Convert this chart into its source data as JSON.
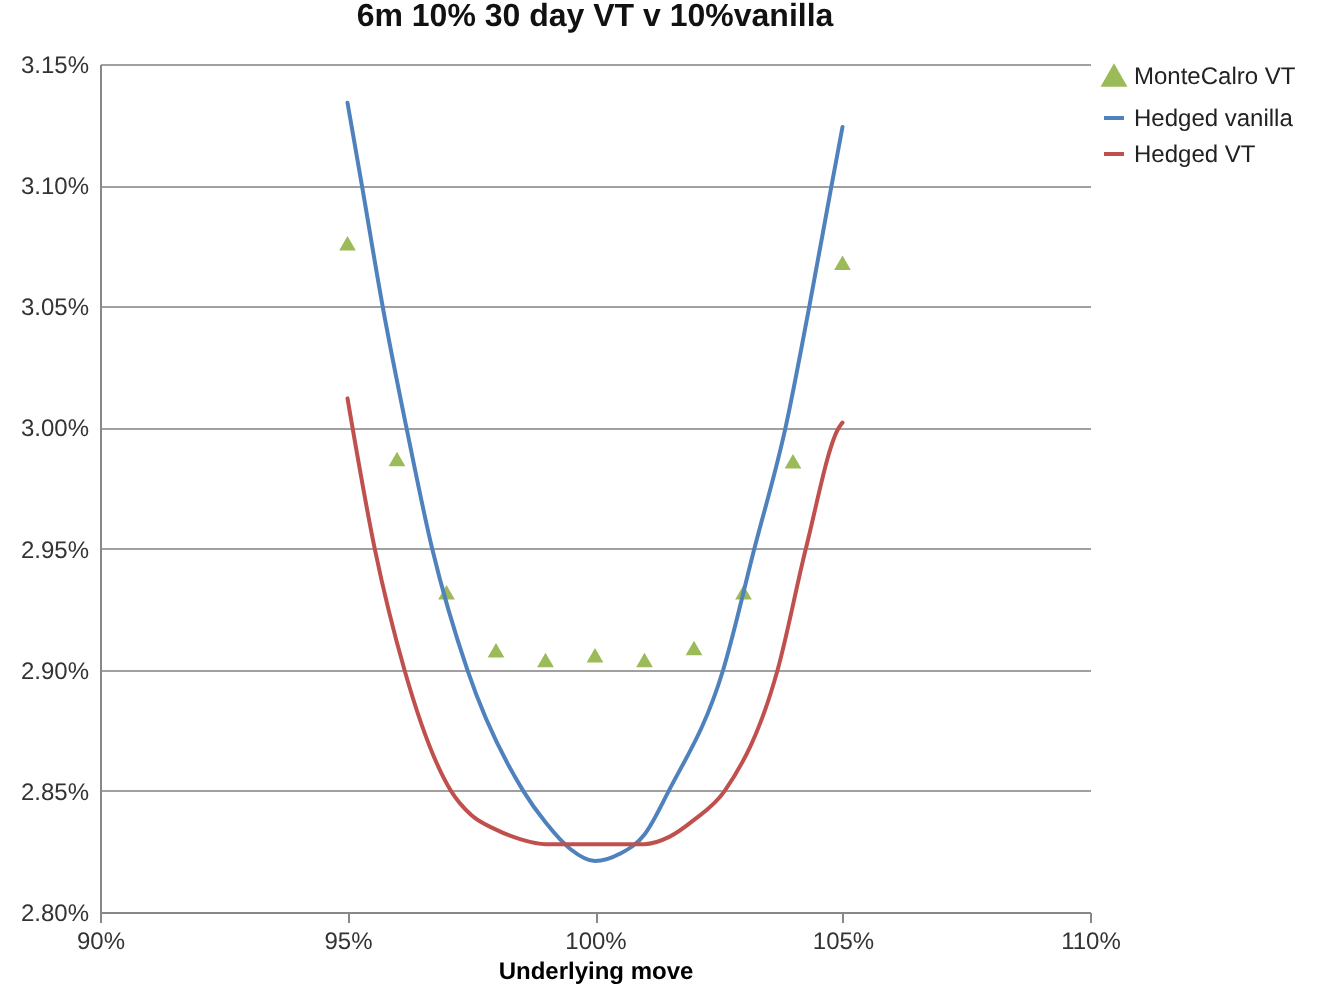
{
  "chart_data": {
    "type": "line",
    "title": "6m 10% 30 day VT v 10%vanilla",
    "xlabel": "Underlying move",
    "xlim": [
      90,
      110
    ],
    "xticks": [
      {
        "value": 90,
        "label": "90%"
      },
      {
        "value": 95,
        "label": "95%"
      },
      {
        "value": 100,
        "label": "100%"
      },
      {
        "value": 105,
        "label": "105%"
      },
      {
        "value": 110,
        "label": "110%"
      }
    ],
    "ylim": [
      2.8,
      3.15
    ],
    "yticks": [
      {
        "value": 2.8,
        "label": "2.80%"
      },
      {
        "value": 2.85,
        "label": "2.85%"
      },
      {
        "value": 2.9,
        "label": "2.90%"
      },
      {
        "value": 2.95,
        "label": "2.95%"
      },
      {
        "value": 3.0,
        "label": "3.00%"
      },
      {
        "value": 3.05,
        "label": "3.05%"
      },
      {
        "value": 3.1,
        "label": "3.10%"
      },
      {
        "value": 3.15,
        "label": "3.15%"
      }
    ],
    "grid": "y",
    "legend": "right",
    "series": [
      {
        "name": "MonteCalro VT",
        "type": "scatter",
        "marker": "triangle",
        "color": "#9bbb59",
        "x": [
          95,
          96,
          97,
          98,
          99,
          100,
          101,
          102,
          103,
          104,
          105
        ],
        "values": [
          3.076,
          2.987,
          2.932,
          2.908,
          2.904,
          2.906,
          2.904,
          2.909,
          2.932,
          2.986,
          3.068
        ]
      },
      {
        "name": "Hedged vanilla",
        "color": "#4f81bd",
        "x": [
          95,
          95.29,
          95.71,
          96.19,
          96.71,
          97.42,
          98.55,
          99,
          99.5,
          100,
          100.5,
          101,
          101.49,
          102.59,
          103.22,
          103.85,
          104.33,
          104.78,
          105
        ],
        "values": [
          3.134,
          3.1,
          3.05,
          3.0,
          2.95,
          2.9,
          2.85,
          2.837,
          2.826,
          2.821,
          2.824,
          2.832,
          2.85,
          2.9,
          2.95,
          3.0,
          3.05,
          3.1,
          3.124
        ]
      },
      {
        "name": "Hedged VT",
        "color": "#c0504d",
        "x": [
          95,
          95.55,
          96.15,
          97.09,
          97.5,
          98,
          98.5,
          99,
          100,
          101,
          101.5,
          102,
          102.62,
          103.69,
          104.26,
          104.93,
          105
        ],
        "values": [
          3.012,
          2.95,
          2.9,
          2.85,
          2.84,
          2.834,
          2.83,
          2.828,
          2.828,
          2.828,
          2.831,
          2.838,
          2.85,
          2.9,
          2.95,
          3.0,
          3.002
        ]
      }
    ]
  }
}
